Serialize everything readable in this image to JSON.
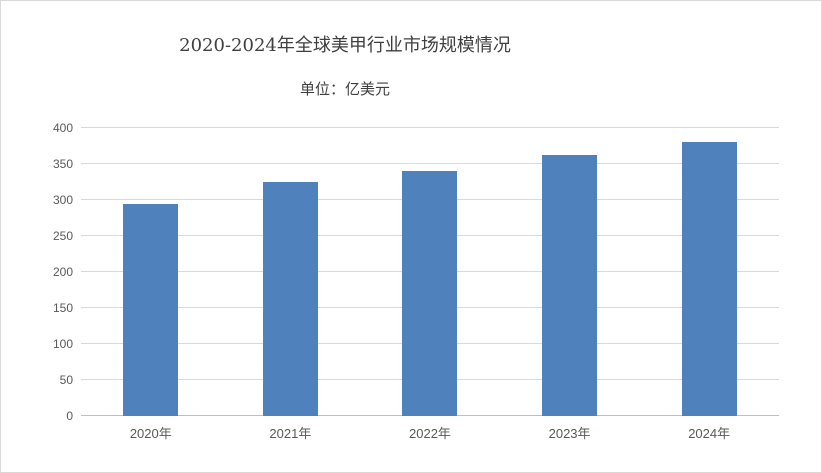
{
  "chart_data": {
    "type": "bar",
    "title": "2020-2024年全球美甲行业市场规模情况",
    "subtitle": "单位：亿美元",
    "categories": [
      "2020年",
      "2021年",
      "2022年",
      "2023年",
      "2024年"
    ],
    "values": [
      295,
      325,
      340,
      362,
      380
    ],
    "ylim": [
      0,
      400
    ],
    "yticks": [
      0,
      50,
      100,
      150,
      200,
      250,
      300,
      350,
      400
    ],
    "xlabel": "",
    "ylabel": "",
    "grid": true,
    "legend": false,
    "legend_position": "none",
    "colors": {
      "bar": "#4F81BD",
      "gridline": "#D9D9D9",
      "axis_line": "#BFBFBF",
      "tick_label": "#595959",
      "title": "#3F3F3F",
      "background": "#FFFFFF",
      "border": "#D9D9D9"
    }
  }
}
